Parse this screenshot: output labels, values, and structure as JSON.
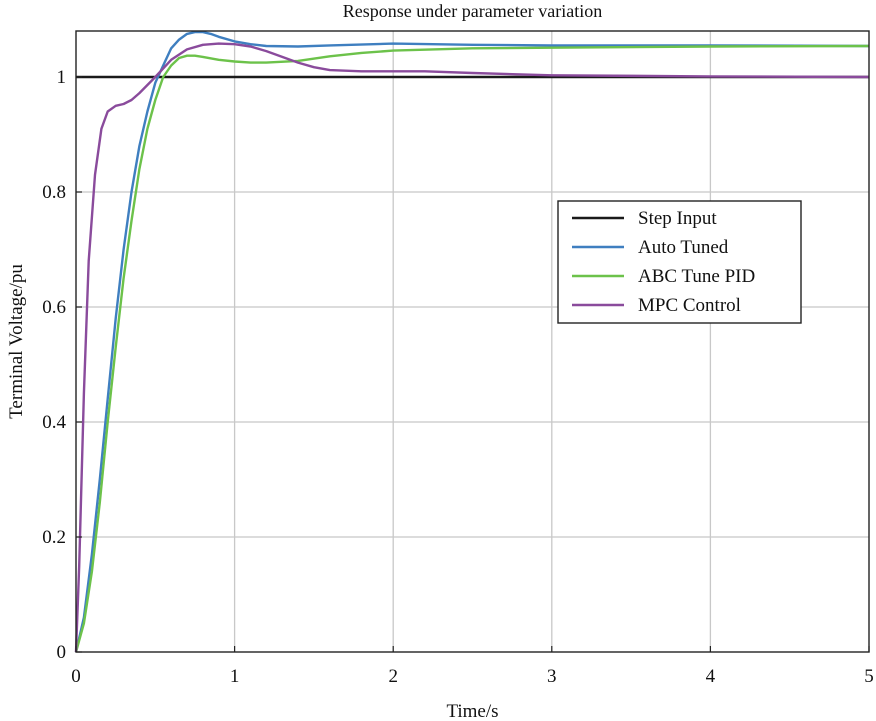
{
  "chart_data": {
    "type": "line",
    "title": "Response under parameter variation",
    "xlabel": "Time/s",
    "ylabel": "Terminal Voltage/pu",
    "xlim": [
      0,
      5
    ],
    "ylim": [
      0,
      1.08
    ],
    "xticks": [
      0,
      1,
      2,
      3,
      4,
      5
    ],
    "xtick_labels": [
      "0",
      "1",
      "2",
      "3",
      "4",
      "5"
    ],
    "yticks": [
      0,
      0.2,
      0.4,
      0.6,
      0.8,
      1
    ],
    "ytick_labels": [
      "0",
      "0.2",
      "0.4",
      "0.6",
      "0.8",
      "1"
    ],
    "grid": true,
    "legend_position": "right",
    "series": [
      {
        "name": "Step Input",
        "color": "#1a1a1a",
        "points": [
          [
            0,
            1.0
          ],
          [
            5,
            1.0
          ]
        ]
      },
      {
        "name": "Auto Tuned",
        "color": "#3f7fc0",
        "points": [
          [
            0,
            0
          ],
          [
            0.05,
            0.06
          ],
          [
            0.1,
            0.17
          ],
          [
            0.15,
            0.3
          ],
          [
            0.2,
            0.44
          ],
          [
            0.25,
            0.58
          ],
          [
            0.3,
            0.7
          ],
          [
            0.35,
            0.8
          ],
          [
            0.4,
            0.88
          ],
          [
            0.45,
            0.94
          ],
          [
            0.5,
            0.99
          ],
          [
            0.55,
            1.02
          ],
          [
            0.6,
            1.05
          ],
          [
            0.65,
            1.065
          ],
          [
            0.7,
            1.075
          ],
          [
            0.75,
            1.078
          ],
          [
            0.8,
            1.078
          ],
          [
            0.85,
            1.075
          ],
          [
            0.9,
            1.07
          ],
          [
            1.0,
            1.062
          ],
          [
            1.1,
            1.057
          ],
          [
            1.2,
            1.054
          ],
          [
            1.4,
            1.053
          ],
          [
            1.6,
            1.055
          ],
          [
            2.0,
            1.058
          ],
          [
            2.5,
            1.056
          ],
          [
            3.0,
            1.055
          ],
          [
            4.0,
            1.055
          ],
          [
            5.0,
            1.054
          ]
        ]
      },
      {
        "name": "ABC Tune PID",
        "color": "#6cc24a",
        "points": [
          [
            0,
            0
          ],
          [
            0.05,
            0.05
          ],
          [
            0.1,
            0.14
          ],
          [
            0.15,
            0.26
          ],
          [
            0.2,
            0.4
          ],
          [
            0.25,
            0.53
          ],
          [
            0.3,
            0.65
          ],
          [
            0.35,
            0.75
          ],
          [
            0.4,
            0.84
          ],
          [
            0.45,
            0.91
          ],
          [
            0.5,
            0.96
          ],
          [
            0.55,
            1.0
          ],
          [
            0.6,
            1.02
          ],
          [
            0.65,
            1.033
          ],
          [
            0.7,
            1.037
          ],
          [
            0.75,
            1.037
          ],
          [
            0.8,
            1.035
          ],
          [
            0.9,
            1.03
          ],
          [
            1.0,
            1.027
          ],
          [
            1.1,
            1.025
          ],
          [
            1.2,
            1.025
          ],
          [
            1.4,
            1.028
          ],
          [
            1.6,
            1.036
          ],
          [
            1.8,
            1.042
          ],
          [
            2.0,
            1.046
          ],
          [
            2.5,
            1.05
          ],
          [
            3.0,
            1.051
          ],
          [
            4.0,
            1.053
          ],
          [
            5.0,
            1.054
          ]
        ]
      },
      {
        "name": "MPC Control",
        "color": "#8a4b9c",
        "points": [
          [
            0,
            0
          ],
          [
            0.02,
            0.15
          ],
          [
            0.05,
            0.45
          ],
          [
            0.08,
            0.68
          ],
          [
            0.12,
            0.83
          ],
          [
            0.16,
            0.91
          ],
          [
            0.2,
            0.94
          ],
          [
            0.25,
            0.95
          ],
          [
            0.3,
            0.953
          ],
          [
            0.35,
            0.96
          ],
          [
            0.4,
            0.972
          ],
          [
            0.5,
            1.0
          ],
          [
            0.6,
            1.03
          ],
          [
            0.7,
            1.048
          ],
          [
            0.8,
            1.056
          ],
          [
            0.9,
            1.058
          ],
          [
            1.0,
            1.057
          ],
          [
            1.1,
            1.053
          ],
          [
            1.2,
            1.045
          ],
          [
            1.3,
            1.035
          ],
          [
            1.4,
            1.025
          ],
          [
            1.5,
            1.017
          ],
          [
            1.6,
            1.012
          ],
          [
            1.8,
            1.01
          ],
          [
            2.0,
            1.01
          ],
          [
            2.2,
            1.01
          ],
          [
            2.5,
            1.007
          ],
          [
            3.0,
            1.003
          ],
          [
            4.0,
            1.001
          ],
          [
            5.0,
            1.0
          ]
        ]
      }
    ]
  }
}
